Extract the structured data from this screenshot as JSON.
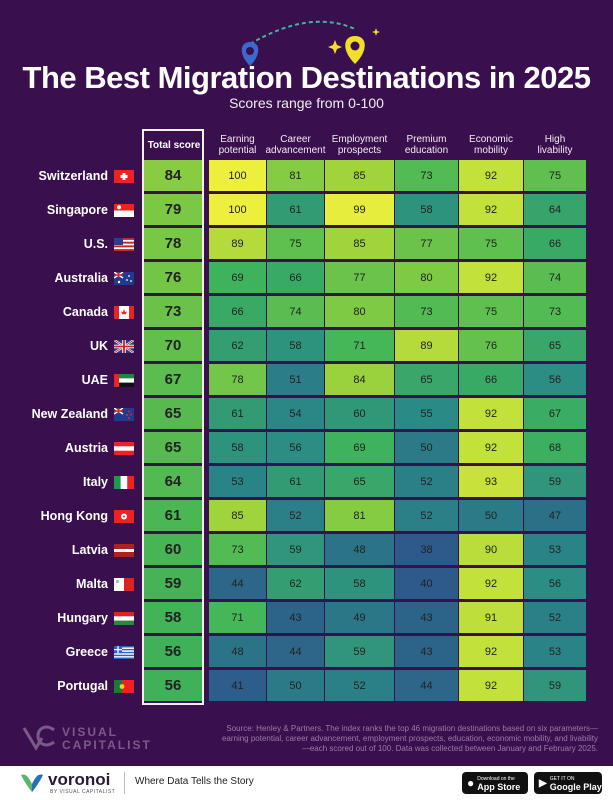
{
  "header": {
    "title": "The Best Migration Destinations in 2025",
    "subtitle": "Scores range from 0-100"
  },
  "chart_data": {
    "type": "table",
    "title": "The Best Migration Destinations in 2025",
    "subtitle": "Scores range from 0-100",
    "total_label": "Total score",
    "columns": [
      "Earning potential",
      "Career advancement",
      "Employment prospects",
      "Premium education",
      "Economic mobility",
      "High livability"
    ],
    "rows": [
      {
        "country": "Switzerland",
        "total": 84,
        "scores": [
          100,
          81,
          85,
          73,
          92,
          75
        ]
      },
      {
        "country": "Singapore",
        "total": 79,
        "scores": [
          100,
          61,
          99,
          58,
          92,
          64
        ]
      },
      {
        "country": "U.S.",
        "total": 78,
        "scores": [
          89,
          75,
          85,
          77,
          75,
          66
        ]
      },
      {
        "country": "Australia",
        "total": 76,
        "scores": [
          69,
          66,
          77,
          80,
          92,
          74
        ]
      },
      {
        "country": "Canada",
        "total": 73,
        "scores": [
          66,
          74,
          80,
          73,
          75,
          73
        ]
      },
      {
        "country": "UK",
        "total": 70,
        "scores": [
          62,
          58,
          71,
          89,
          76,
          65
        ]
      },
      {
        "country": "UAE",
        "total": 67,
        "scores": [
          78,
          51,
          84,
          65,
          66,
          56
        ]
      },
      {
        "country": "New Zealand",
        "total": 65,
        "scores": [
          61,
          54,
          60,
          55,
          92,
          67
        ]
      },
      {
        "country": "Austria",
        "total": 65,
        "scores": [
          58,
          56,
          69,
          50,
          92,
          68
        ]
      },
      {
        "country": "Italy",
        "total": 64,
        "scores": [
          53,
          61,
          65,
          52,
          93,
          59
        ]
      },
      {
        "country": "Hong Kong",
        "total": 61,
        "scores": [
          85,
          52,
          81,
          52,
          50,
          47
        ]
      },
      {
        "country": "Latvia",
        "total": 60,
        "scores": [
          73,
          59,
          48,
          38,
          90,
          53
        ]
      },
      {
        "country": "Malta",
        "total": 59,
        "scores": [
          44,
          62,
          58,
          40,
          92,
          56
        ]
      },
      {
        "country": "Hungary",
        "total": 58,
        "scores": [
          71,
          43,
          49,
          43,
          91,
          52
        ]
      },
      {
        "country": "Greece",
        "total": 56,
        "scores": [
          48,
          44,
          59,
          43,
          92,
          53
        ]
      },
      {
        "country": "Portugal",
        "total": 56,
        "scores": [
          41,
          50,
          52,
          44,
          92,
          59
        ]
      }
    ],
    "colors": [
      "#2d5a8a",
      "#2a8a86",
      "#3fb55a",
      "#9fd43a",
      "#ecef3c"
    ]
  },
  "flags": [
    "switzerland-flag",
    "singapore-flag",
    "us-flag",
    "australia-flag",
    "canada-flag",
    "uk-flag",
    "uae-flag",
    "new-zealand-flag",
    "austria-flag",
    "italy-flag",
    "hong-kong-flag",
    "latvia-flag",
    "malta-flag",
    "hungary-flag",
    "greece-flag",
    "portugal-flag"
  ],
  "source": "Source: Henley & Partners. The index ranks the top 46 migration destinations based on six parameters—earning potential, career advancement, employment prospects, education, economic mobility, and livability—each scored out of 100. Data was collected between January and February 2025.",
  "branding": {
    "vc_line1": "VISUAL",
    "vc_line2": "CAPITALIST",
    "brand": "voronoi",
    "brand_sub": "BY VISUAL CAPITALIST",
    "tagline": "Where Data Tells the Story",
    "app_store_small": "Download on the",
    "app_store": "App Store",
    "google_play_small": "GET IT ON",
    "google_play": "Google Play"
  }
}
